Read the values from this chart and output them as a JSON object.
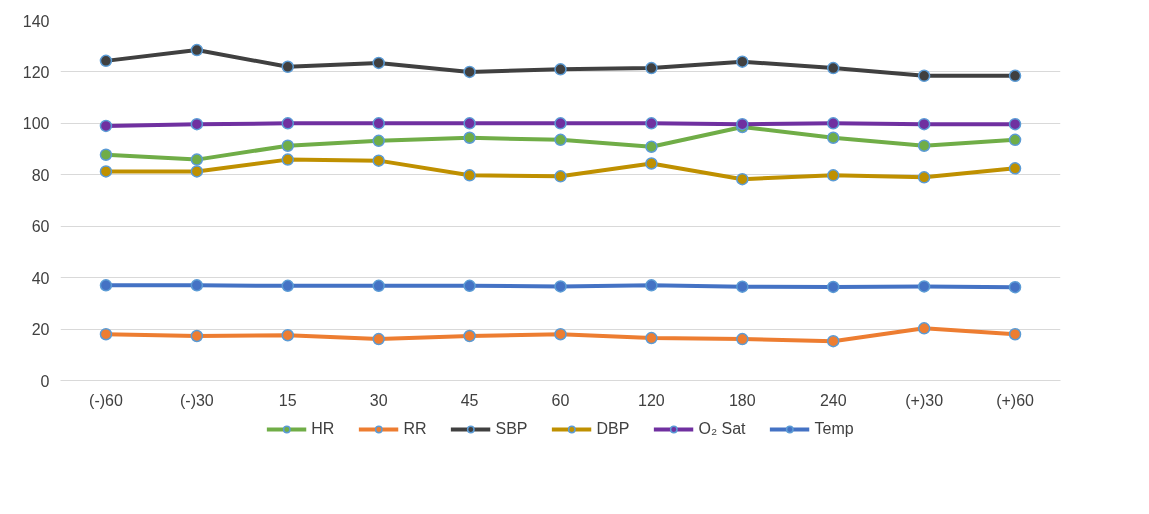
{
  "chart_data": {
    "type": "line",
    "categories": [
      "(-)60",
      "(-)30",
      "15",
      "30",
      "45",
      "60",
      "120",
      "180",
      "240",
      "(+)30",
      "(+)60"
    ],
    "series": [
      {
        "name": "HR",
        "color": "#70ad47",
        "values": [
          87.8,
          85.9,
          91.3,
          93.2,
          94.4,
          93.6,
          90.9,
          98.6,
          94.4,
          91.3,
          93.6
        ]
      },
      {
        "name": "RR",
        "color": "#ed7d31",
        "values": [
          18,
          17.3,
          17.6,
          16.1,
          17.3,
          18,
          16.5,
          16.1,
          15.3,
          20.3,
          18
        ]
      },
      {
        "name": "SBP",
        "color": "#404040",
        "values": [
          124.3,
          128.5,
          122,
          123.5,
          120,
          121,
          121.5,
          124,
          121.5,
          118.5,
          118.5
        ]
      },
      {
        "name": "DBP",
        "color": "#bf9000",
        "values": [
          81.3,
          81.3,
          85.9,
          85.5,
          79.8,
          79.4,
          84.4,
          78.3,
          79.8,
          79,
          82.5
        ]
      },
      {
        "name": "O₂ Sat",
        "color": "#7030a0",
        "values": [
          99,
          99.7,
          100,
          100,
          100,
          100,
          100,
          99.7,
          100,
          99.7,
          99.7
        ]
      },
      {
        "name": "Temp",
        "color": "#4472c4",
        "values": [
          37,
          37,
          36.8,
          36.8,
          36.8,
          36.6,
          37,
          36.5,
          36.4,
          36.6,
          36.3
        ]
      }
    ],
    "ylim": [
      0,
      140
    ],
    "yticks": [
      0,
      20,
      40,
      60,
      80,
      100,
      120,
      140
    ],
    "grid": "y",
    "legend": "bottom",
    "marker": "circle",
    "line_style": "solid"
  }
}
